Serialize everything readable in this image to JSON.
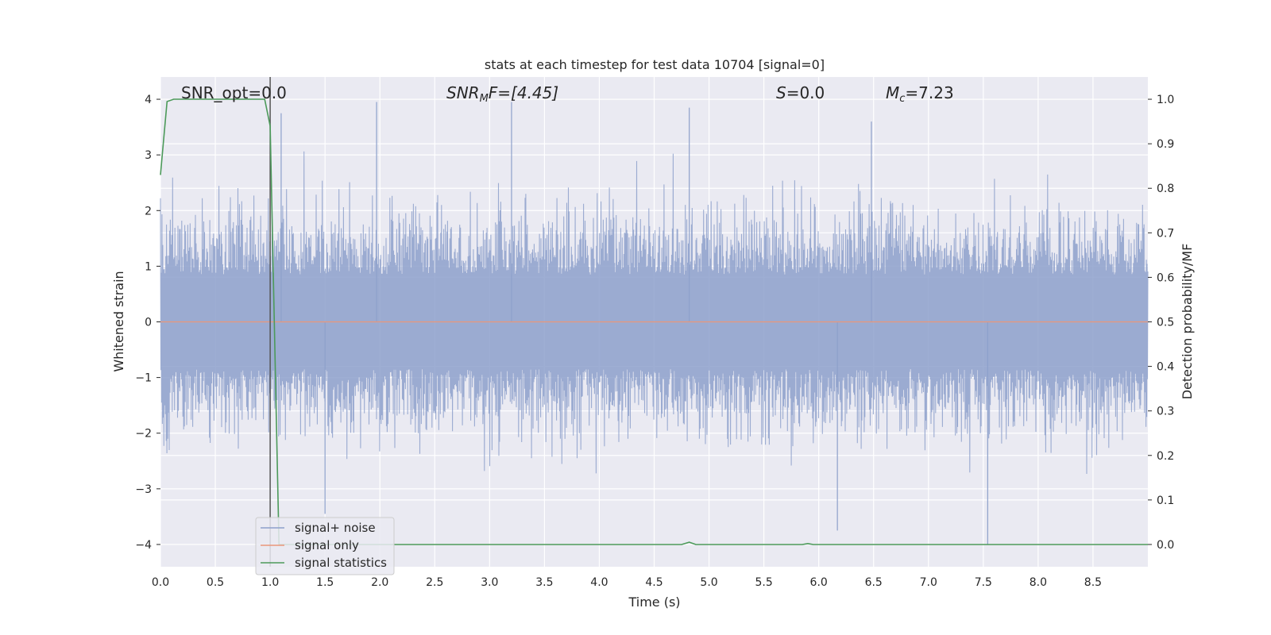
{
  "chart_data": {
    "type": "line",
    "title": "stats at each timestep for test data 10704 [signal=0]",
    "xlabel": "Time (s)",
    "ylabel": "Whitened strain",
    "ylabel_right": "Detection probability/MF",
    "xlim": [
      0,
      9.0
    ],
    "ylim": [
      -4.4,
      4.4
    ],
    "ylim_right": [
      -0.05,
      1.05
    ],
    "x_ticks": [
      "0.0",
      "0.5",
      "1.0",
      "1.5",
      "2.0",
      "2.5",
      "3.0",
      "3.5",
      "4.0",
      "4.5",
      "5.0",
      "5.5",
      "6.0",
      "6.5",
      "7.0",
      "7.5",
      "8.0",
      "8.5"
    ],
    "y_ticks": [
      "4",
      "3",
      "2",
      "1",
      "0",
      "−1",
      "−2",
      "−3",
      "−4"
    ],
    "y_right_ticks": [
      "1.0",
      "0.9",
      "0.8",
      "0.7",
      "0.6",
      "0.5",
      "0.4",
      "0.3",
      "0.2",
      "0.1",
      "0.0"
    ],
    "grid": true,
    "legend_position": "lower-left",
    "colors": {
      "background": "#eaeaf2",
      "grid": "#ffffff",
      "noise": "#8da0cb",
      "signal_only": "#e9967a",
      "statistics": "#4c9a5a",
      "marker_line": "#555555"
    },
    "annotations": {
      "snr_opt": "SNR_opt=0.0",
      "snr_mf_prefix": "SNR",
      "snr_mf_sub": "M",
      "snr_mf_suffix": "F=[4.45]",
      "s_prefix": "S",
      "s_suffix": "=0.0",
      "mc_prefix": "M",
      "mc_sub": "c",
      "mc_suffix": "=7.23"
    },
    "marker_x": 1.0,
    "series": [
      {
        "name": "signal+ noise",
        "axis": "left",
        "sample_rate_hz": 2048,
        "envelope_x": [
          0.0,
          0.5,
          1.0,
          1.5,
          2.0,
          2.5,
          3.0,
          3.5,
          4.0,
          4.5,
          5.0,
          5.5,
          6.0,
          6.5,
          7.0,
          7.5,
          8.0,
          8.5,
          9.0
        ],
        "envelope_upper": [
          3.3,
          2.9,
          3.8,
          3.1,
          3.9,
          3.2,
          3.9,
          3.5,
          3.4,
          3.8,
          3.5,
          3.6,
          3.6,
          3.7,
          3.6,
          3.4,
          3.5,
          3.3,
          3.3
        ],
        "envelope_lower": [
          -2.4,
          -2.9,
          -3.4,
          -3.0,
          -2.9,
          -3.1,
          -3.3,
          -3.2,
          -3.3,
          -3.3,
          -3.3,
          -3.1,
          -3.7,
          -3.2,
          -3.1,
          -4.0,
          -3.0,
          -2.7,
          -2.5
        ],
        "notable_peaks": [
          [
            1.1,
            3.75
          ],
          [
            1.97,
            3.95
          ],
          [
            3.2,
            3.95
          ],
          [
            4.82,
            3.85
          ],
          [
            6.48,
            3.6
          ]
        ],
        "notable_troughs": [
          [
            1.5,
            -3.45
          ],
          [
            6.17,
            -3.75
          ],
          [
            7.54,
            -4.0
          ]
        ]
      },
      {
        "name": "signal only",
        "axis": "left",
        "x": [
          0.0,
          9.0
        ],
        "y": [
          0.0,
          0.0
        ]
      },
      {
        "name": "signal statistics",
        "axis": "right",
        "x": [
          0.0,
          0.06,
          0.12,
          0.5,
          0.95,
          1.0,
          1.08,
          1.1,
          4.75,
          4.82,
          4.88,
          5.85,
          5.9,
          5.95,
          9.0
        ],
        "y": [
          0.83,
          0.995,
          1.0,
          1.0,
          1.0,
          0.94,
          0.0,
          0.0,
          0.0,
          0.005,
          0.0,
          0.0,
          0.002,
          0.0,
          0.0
        ]
      }
    ]
  }
}
